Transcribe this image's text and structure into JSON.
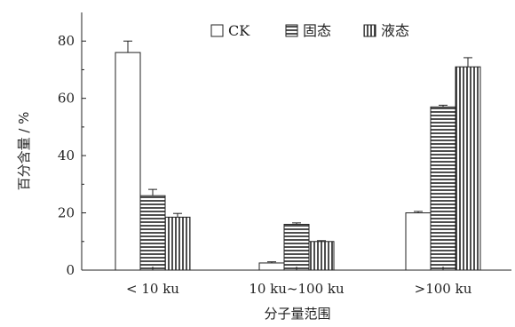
{
  "chart_data": {
    "type": "bar",
    "categories": [
      "< 10 ku",
      "10 ku~100 ku",
      ">100 ku"
    ],
    "series": [
      {
        "name": "CK",
        "values": [
          76,
          2.5,
          20
        ],
        "errors": [
          4,
          0.4,
          0.5
        ],
        "pattern": "none"
      },
      {
        "name": "固态",
        "values": [
          26,
          16,
          57
        ],
        "errors": [
          2.2,
          0.5,
          0.6
        ],
        "pattern": "horizontal"
      },
      {
        "name": "液态",
        "values": [
          18.5,
          10,
          71
        ],
        "errors": [
          1.3,
          0.3,
          3.2
        ],
        "pattern": "vertical"
      }
    ],
    "xlabel": "分子量范围",
    "ylabel": "百分含量 / %",
    "ylim": [
      0,
      90
    ],
    "yticks": [
      0,
      20,
      40,
      60,
      80
    ],
    "legend_position": "top-right",
    "grid": false,
    "colors": {
      "stroke": "#222222",
      "fill": "#ffffff"
    }
  }
}
